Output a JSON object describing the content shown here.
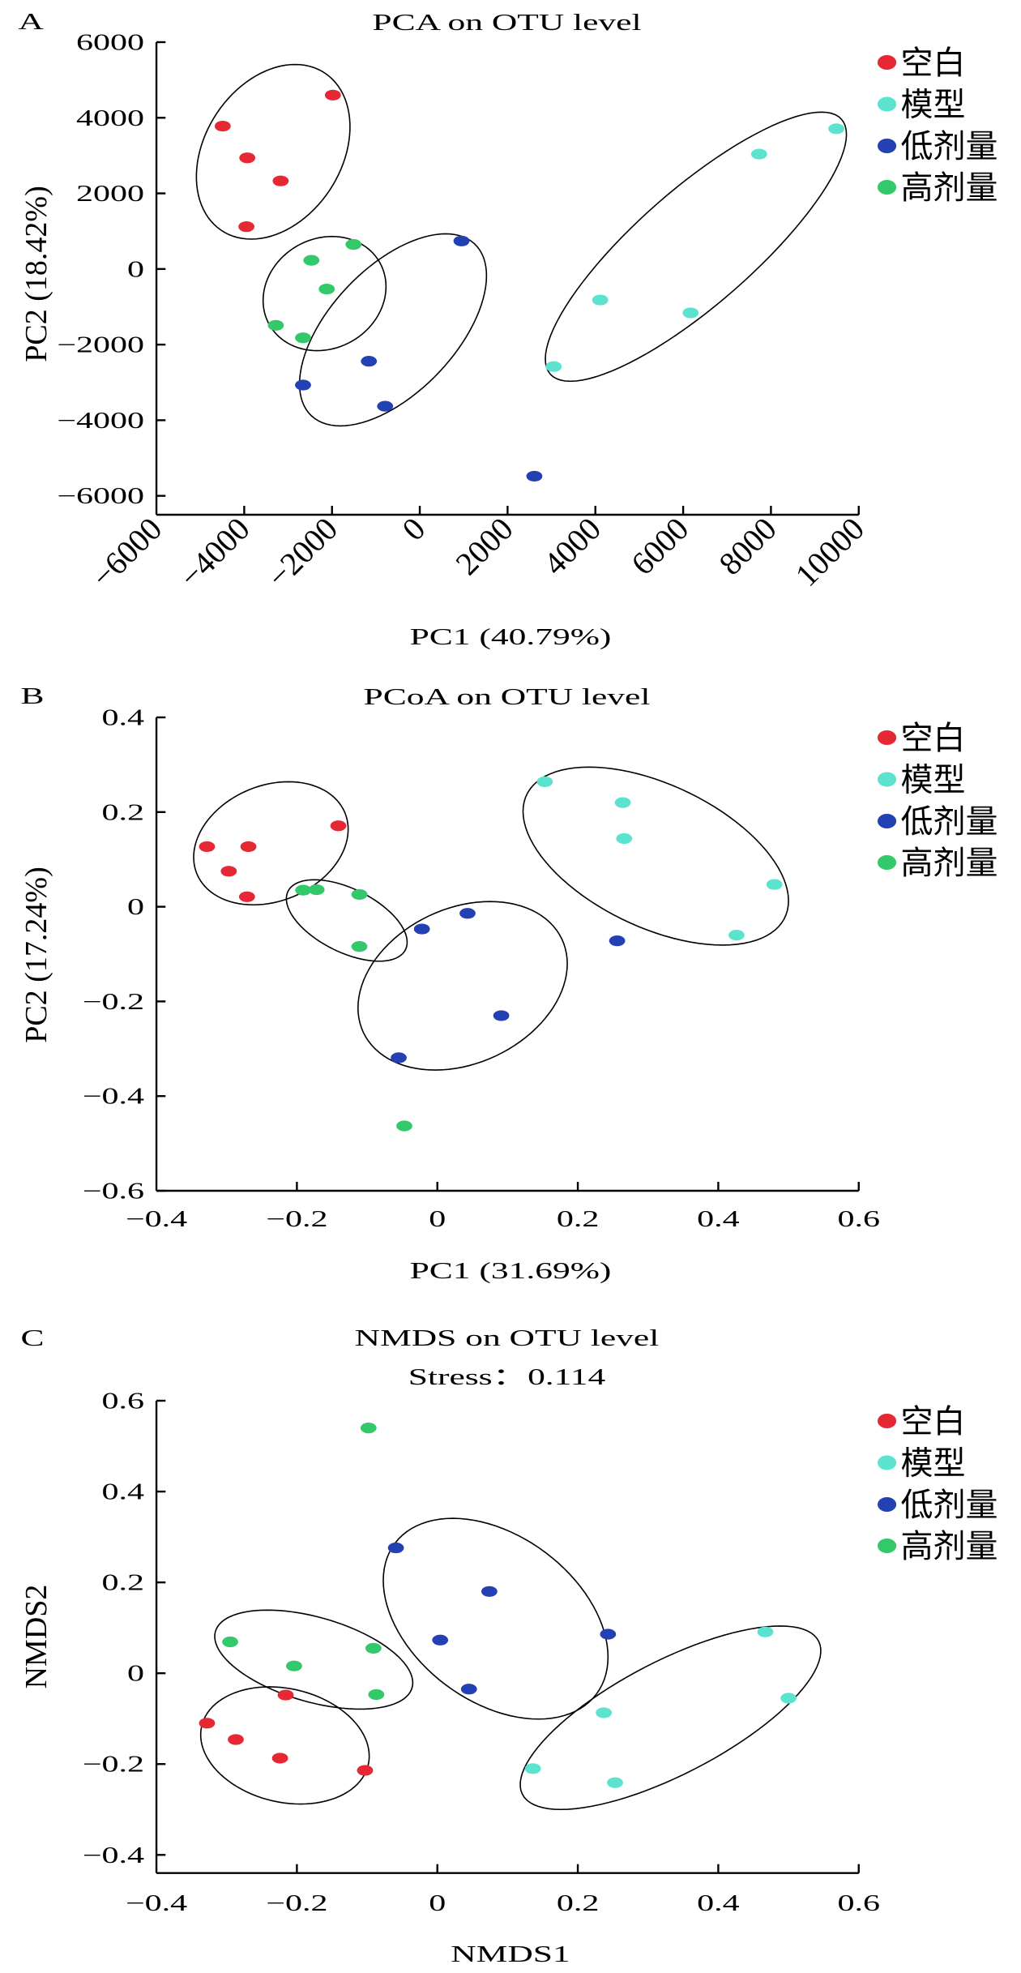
{
  "chart_data": [
    {
      "panel_label": "A",
      "type": "scatter",
      "title": "PCA on OTU level",
      "subtitle": "",
      "xlabel": "PC1 (40.79%)",
      "ylabel": "PC2 (18.42%)",
      "xlim": [
        -6000,
        10000
      ],
      "ylim": [
        -6500,
        6000
      ],
      "xticks": [
        -6000,
        -4000,
        -2000,
        0,
        2000,
        4000,
        6000,
        8000,
        10000
      ],
      "xtick_labels": [
        "−6000",
        "−4000",
        "−2000",
        "0",
        "2000",
        "4000",
        "6000",
        "8000",
        "10000"
      ],
      "xtick_rotation": "diagonal",
      "yticks": [
        -6000,
        -4000,
        -2000,
        0,
        2000,
        4000,
        6000
      ],
      "ytick_labels": [
        "−6000",
        "−4000",
        "−2000",
        "0",
        "2000",
        "4000",
        "6000"
      ],
      "grid": false,
      "legend": "top-right",
      "series": [
        {
          "name": "空白",
          "color": "#e52833",
          "points": [
            [
              -4490,
              3780
            ],
            [
              -1980,
              4600
            ],
            [
              -3930,
              2940
            ],
            [
              -3170,
              2330
            ],
            [
              -3950,
              1120
            ]
          ]
        },
        {
          "name": "模型",
          "color": "#5ce3cf",
          "points": [
            [
              9490,
              3710
            ],
            [
              7730,
              3040
            ],
            [
              4110,
              -820
            ],
            [
              6170,
              -1160
            ],
            [
              3050,
              -2580
            ]
          ]
        },
        {
          "name": "低剂量",
          "color": "#2441b4",
          "points": [
            [
              950,
              740
            ],
            [
              -1160,
              -2440
            ],
            [
              -2660,
              -3070
            ],
            [
              -790,
              -3630
            ],
            [
              2610,
              -5480
            ]
          ]
        },
        {
          "name": "高剂量",
          "color": "#33c96a",
          "points": [
            [
              -1510,
              650
            ],
            [
              -2470,
              230
            ],
            [
              -2120,
              -530
            ],
            [
              -3280,
              -1490
            ],
            [
              -2660,
              -1820
            ]
          ]
        }
      ],
      "ellipses": [
        {
          "group": "空白",
          "center": [
            -3340,
            3100
          ],
          "half_width": 1750,
          "half_height": 2310,
          "top_offset": 500
        },
        {
          "group": "模型",
          "center": [
            6290,
            590
          ],
          "half_width": 3430,
          "half_height": 3560,
          "top_offset": 2860
        },
        {
          "group": "低剂量",
          "center": [
            -610,
            -1610
          ],
          "half_width": 2130,
          "half_height": 2540,
          "top_offset": 1200
        },
        {
          "group": "高剂量",
          "center": [
            -2170,
            -650
          ],
          "half_width": 1400,
          "half_height": 1510,
          "top_offset": 170
        }
      ]
    },
    {
      "panel_label": "B",
      "type": "scatter",
      "title": "PCoA on OTU level",
      "subtitle": "",
      "xlabel": "PC1 (31.69%)",
      "ylabel": "PC2 (17.24%)",
      "xlim": [
        -0.4,
        0.6
      ],
      "ylim": [
        -0.6,
        0.4
      ],
      "xticks": [
        -0.4,
        -0.2,
        0,
        0.2,
        0.4,
        0.6
      ],
      "xtick_labels": [
        "−0.4",
        "−0.2",
        "0",
        "0.2",
        "0.4",
        "0.6"
      ],
      "xtick_rotation": "none",
      "yticks": [
        -0.6,
        -0.4,
        -0.2,
        0,
        0.2,
        0.4
      ],
      "ytick_labels": [
        "−0.6",
        "−0.4",
        "−0.2",
        "0",
        "0.2",
        "0.4"
      ],
      "grid": false,
      "legend": "top-right",
      "series": [
        {
          "name": "空白",
          "color": "#e52833",
          "points": [
            [
              -0.328,
              0.127
            ],
            [
              -0.269,
              0.127
            ],
            [
              -0.297,
              0.075
            ],
            [
              -0.271,
              0.021
            ],
            [
              -0.141,
              0.171
            ]
          ]
        },
        {
          "name": "模型",
          "color": "#5ce3cf",
          "points": [
            [
              0.153,
              0.264
            ],
            [
              0.264,
              0.22
            ],
            [
              0.266,
              0.144
            ],
            [
              0.48,
              0.047
            ],
            [
              0.426,
              -0.06
            ]
          ]
        },
        {
          "name": "低剂量",
          "color": "#2441b4",
          "points": [
            [
              -0.022,
              -0.047
            ],
            [
              0.043,
              -0.014
            ],
            [
              0.091,
              -0.23
            ],
            [
              -0.055,
              -0.319
            ],
            [
              0.256,
              -0.072
            ]
          ]
        },
        {
          "name": "高剂量",
          "color": "#33c96a",
          "points": [
            [
              -0.191,
              0.035
            ],
            [
              -0.172,
              0.036
            ],
            [
              -0.111,
              0.026
            ],
            [
              -0.111,
              -0.084
            ],
            [
              -0.047,
              -0.463
            ]
          ]
        }
      ],
      "ellipses": [
        {
          "group": "空白",
          "center": [
            -0.237,
            0.134
          ],
          "half_width": 0.11,
          "half_height": 0.13,
          "top_offset": 0.025
        },
        {
          "group": "模型",
          "center": [
            0.311,
            0.107
          ],
          "half_width": 0.189,
          "half_height": 0.188,
          "top_offset": -0.095
        },
        {
          "group": "低剂量",
          "center": [
            0.036,
            -0.167
          ],
          "half_width": 0.149,
          "half_height": 0.178,
          "top_offset": 0.039
        },
        {
          "group": "高剂量",
          "center": [
            -0.129,
            -0.029
          ],
          "half_width": 0.086,
          "half_height": 0.086,
          "top_offset": -0.046
        }
      ]
    },
    {
      "panel_label": "C",
      "type": "scatter",
      "title": "NMDS on OTU level",
      "subtitle": "Stress：0.114",
      "xlabel": "NMDS1",
      "ylabel": "NMDS2",
      "xlim": [
        -0.4,
        0.6
      ],
      "ylim": [
        -0.44,
        0.6
      ],
      "xticks": [
        -0.4,
        -0.2,
        0,
        0.2,
        0.4,
        0.6
      ],
      "xtick_labels": [
        "−0.4",
        "−0.2",
        "0",
        "0.2",
        "0.4",
        "0.6"
      ],
      "xtick_rotation": "none",
      "yticks": [
        -0.4,
        -0.2,
        0,
        0.2,
        0.4,
        0.6
      ],
      "ytick_labels": [
        "−0.4",
        "−0.2",
        "0",
        "0.2",
        "0.4",
        "0.6"
      ],
      "grid": false,
      "legend": "top-right",
      "series": [
        {
          "name": "空白",
          "color": "#e52833",
          "points": [
            [
              -0.328,
              -0.11
            ],
            [
              -0.287,
              -0.146
            ],
            [
              -0.224,
              -0.187
            ],
            [
              -0.216,
              -0.048
            ],
            [
              -0.103,
              -0.214
            ]
          ]
        },
        {
          "name": "模型",
          "color": "#5ce3cf",
          "points": [
            [
              0.467,
              0.091
            ],
            [
              0.5,
              -0.055
            ],
            [
              0.237,
              -0.087
            ],
            [
              0.136,
              -0.21
            ],
            [
              0.253,
              -0.241
            ]
          ]
        },
        {
          "name": "低剂量",
          "color": "#2441b4",
          "points": [
            [
              -0.059,
              0.276
            ],
            [
              0.074,
              0.18
            ],
            [
              0.004,
              0.073
            ],
            [
              0.045,
              -0.035
            ],
            [
              0.243,
              0.086
            ]
          ]
        },
        {
          "name": "高剂量",
          "color": "#33c96a",
          "points": [
            [
              -0.098,
              0.54
            ],
            [
              -0.295,
              0.069
            ],
            [
              -0.204,
              0.016
            ],
            [
              -0.091,
              0.055
            ],
            [
              -0.087,
              -0.047
            ]
          ]
        }
      ],
      "ellipses": [
        {
          "group": "空白",
          "center": [
            -0.217,
            -0.159
          ],
          "half_width": 0.12,
          "half_height": 0.129,
          "top_offset": -0.022
        },
        {
          "group": "模型",
          "center": [
            0.332,
            -0.098
          ],
          "half_width": 0.214,
          "half_height": 0.202,
          "top_offset": 0.156
        },
        {
          "group": "低剂量",
          "center": [
            0.083,
            0.12
          ],
          "half_width": 0.16,
          "half_height": 0.221,
          "top_offset": -0.061
        },
        {
          "group": "高剂量",
          "center": [
            -0.176,
            0.03
          ],
          "half_width": 0.141,
          "half_height": 0.109,
          "top_offset": -0.066
        }
      ]
    }
  ]
}
